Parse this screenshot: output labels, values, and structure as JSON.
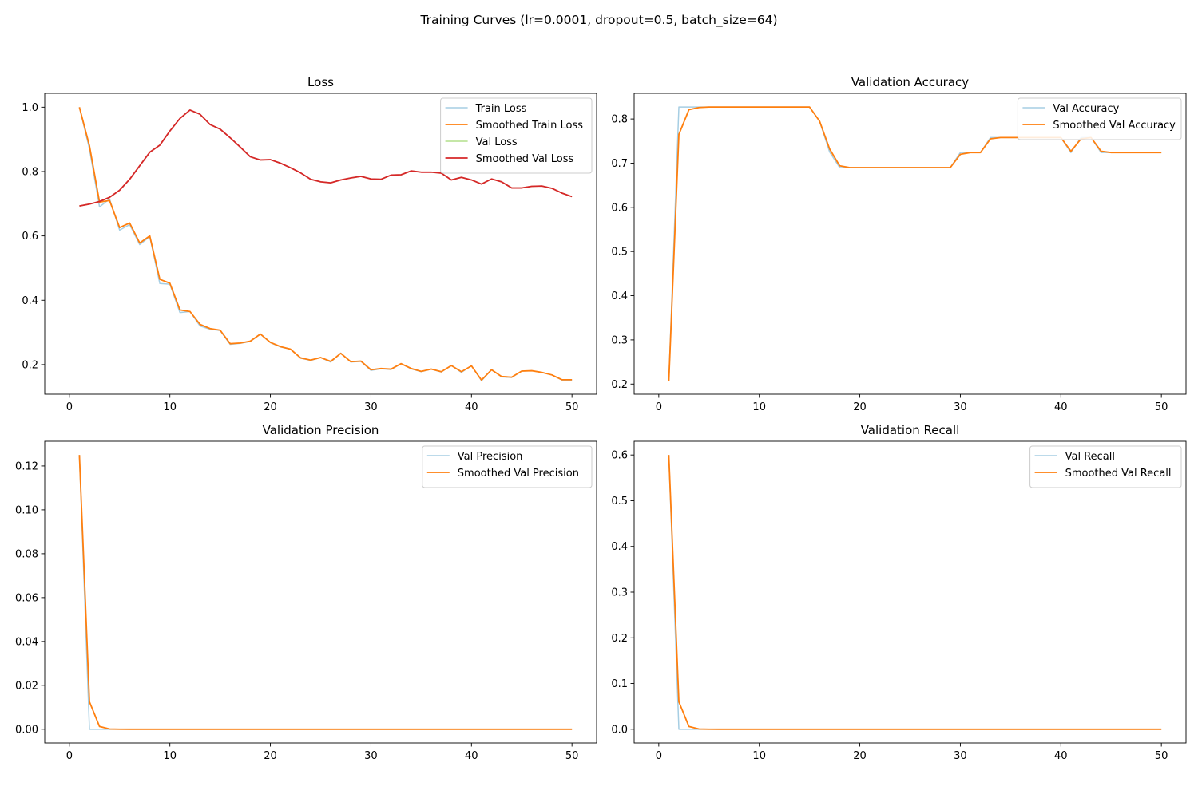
{
  "figure": {
    "title": "Training Curves (lr=0.0001, dropout=0.5, batch_size=64)"
  },
  "chart_data": [
    {
      "type": "line",
      "title": "Loss",
      "xlabel": "",
      "ylabel": "",
      "xlim": [
        -2.45,
        52.45
      ],
      "ylim": [
        0.108,
        1.043
      ],
      "xticks": [
        0,
        10,
        20,
        30,
        40,
        50
      ],
      "yticks": [
        0.2,
        0.4,
        0.6,
        0.8,
        1.0
      ],
      "ytick_labels": [
        "0.2",
        "0.4",
        "0.6",
        "0.8",
        "1.0"
      ],
      "legend": "top-right",
      "grid": false,
      "x": [
        1,
        2,
        3,
        4,
        5,
        6,
        7,
        8,
        9,
        10,
        11,
        12,
        13,
        14,
        15,
        16,
        17,
        18,
        19,
        20,
        21,
        22,
        23,
        24,
        25,
        26,
        27,
        28,
        29,
        30,
        31,
        32,
        33,
        34,
        35,
        36,
        37,
        38,
        39,
        40,
        41,
        42,
        43,
        44,
        45,
        46,
        47,
        48,
        49,
        50
      ],
      "series": [
        {
          "name": "Train Loss",
          "color": "#a6cee3",
          "width": 1.5,
          "values": [
            1.0,
            0.87,
            0.69,
            0.715,
            0.618,
            0.635,
            0.573,
            0.598,
            0.452,
            0.45,
            0.362,
            0.365,
            0.32,
            0.31,
            0.306,
            0.263,
            0.266,
            0.272,
            0.295,
            0.268,
            0.255,
            0.248,
            0.22,
            0.213,
            0.222,
            0.208,
            0.236,
            0.208,
            0.21,
            0.182,
            0.187,
            0.185,
            0.203,
            0.187,
            0.178,
            0.186,
            0.177,
            0.198,
            0.176,
            0.197,
            0.15,
            0.185,
            0.162,
            0.16,
            0.18,
            0.181,
            0.176,
            0.168,
            0.152,
            0.152
          ]
        },
        {
          "name": "Smoothed Train Loss",
          "color": "#ff7f0e",
          "width": 1.8,
          "values": [
            1.0,
            0.88,
            0.705,
            0.71,
            0.626,
            0.64,
            0.578,
            0.6,
            0.465,
            0.453,
            0.37,
            0.365,
            0.325,
            0.312,
            0.307,
            0.265,
            0.267,
            0.273,
            0.295,
            0.269,
            0.256,
            0.248,
            0.221,
            0.214,
            0.222,
            0.21,
            0.235,
            0.209,
            0.211,
            0.184,
            0.188,
            0.186,
            0.203,
            0.188,
            0.179,
            0.186,
            0.178,
            0.197,
            0.178,
            0.196,
            0.152,
            0.184,
            0.163,
            0.161,
            0.18,
            0.181,
            0.176,
            0.168,
            0.153,
            0.153
          ]
        },
        {
          "name": "Val Loss",
          "color": "#b2df8a",
          "width": 1.5,
          "values": [
            0.693,
            0.699,
            0.707,
            0.72,
            0.742,
            0.776,
            0.818,
            0.86,
            0.882,
            0.926,
            0.965,
            0.991,
            0.978,
            0.946,
            0.932,
            0.905,
            0.876,
            0.846,
            0.836,
            0.837,
            0.826,
            0.812,
            0.796,
            0.776,
            0.768,
            0.765,
            0.774,
            0.78,
            0.785,
            0.777,
            0.776,
            0.789,
            0.79,
            0.802,
            0.798,
            0.798,
            0.795,
            0.774,
            0.782,
            0.774,
            0.761,
            0.777,
            0.768,
            0.749,
            0.749,
            0.754,
            0.755,
            0.748,
            0.733,
            0.722
          ]
        },
        {
          "name": "Smoothed Val Loss",
          "color": "#d62728",
          "width": 1.8,
          "values": [
            0.693,
            0.699,
            0.707,
            0.72,
            0.742,
            0.776,
            0.818,
            0.86,
            0.882,
            0.926,
            0.965,
            0.991,
            0.978,
            0.946,
            0.932,
            0.905,
            0.876,
            0.846,
            0.836,
            0.837,
            0.826,
            0.812,
            0.796,
            0.776,
            0.768,
            0.765,
            0.774,
            0.78,
            0.785,
            0.777,
            0.776,
            0.789,
            0.79,
            0.802,
            0.798,
            0.798,
            0.795,
            0.774,
            0.782,
            0.774,
            0.761,
            0.777,
            0.768,
            0.749,
            0.749,
            0.754,
            0.755,
            0.748,
            0.733,
            0.722
          ]
        }
      ]
    },
    {
      "type": "line",
      "title": "Validation Accuracy",
      "xlabel": "",
      "ylabel": "",
      "xlim": [
        -2.45,
        52.45
      ],
      "ylim": [
        0.177,
        0.858
      ],
      "xticks": [
        0,
        10,
        20,
        30,
        40,
        50
      ],
      "yticks": [
        0.2,
        0.3,
        0.4,
        0.5,
        0.6,
        0.7,
        0.8
      ],
      "ytick_labels": [
        "0.2",
        "0.3",
        "0.4",
        "0.5",
        "0.6",
        "0.7",
        "0.8"
      ],
      "legend": "top-right",
      "grid": false,
      "x": [
        1,
        2,
        3,
        4,
        5,
        6,
        7,
        8,
        9,
        10,
        11,
        12,
        13,
        14,
        15,
        16,
        17,
        18,
        19,
        20,
        21,
        22,
        23,
        24,
        25,
        26,
        27,
        28,
        29,
        30,
        31,
        32,
        33,
        34,
        35,
        36,
        37,
        38,
        39,
        40,
        41,
        42,
        43,
        44,
        45,
        46,
        47,
        48,
        49,
        50
      ],
      "series": [
        {
          "name": "Val Accuracy",
          "color": "#a6cee3",
          "width": 1.5,
          "values": [
            0.206,
            0.827,
            0.827,
            0.827,
            0.827,
            0.827,
            0.827,
            0.827,
            0.827,
            0.827,
            0.827,
            0.827,
            0.827,
            0.827,
            0.827,
            0.795,
            0.725,
            0.69,
            0.69,
            0.69,
            0.69,
            0.69,
            0.69,
            0.69,
            0.69,
            0.69,
            0.69,
            0.69,
            0.69,
            0.724,
            0.724,
            0.724,
            0.758,
            0.758,
            0.758,
            0.758,
            0.758,
            0.758,
            0.758,
            0.758,
            0.724,
            0.758,
            0.758,
            0.724,
            0.724,
            0.724,
            0.724,
            0.724,
            0.724,
            0.724
          ]
        },
        {
          "name": "Smoothed Val Accuracy",
          "color": "#ff7f0e",
          "width": 1.8,
          "values": [
            0.206,
            0.765,
            0.821,
            0.826,
            0.827,
            0.827,
            0.827,
            0.827,
            0.827,
            0.827,
            0.827,
            0.827,
            0.827,
            0.827,
            0.827,
            0.795,
            0.732,
            0.694,
            0.69,
            0.69,
            0.69,
            0.69,
            0.69,
            0.69,
            0.69,
            0.69,
            0.69,
            0.69,
            0.69,
            0.72,
            0.724,
            0.724,
            0.755,
            0.758,
            0.758,
            0.758,
            0.758,
            0.758,
            0.758,
            0.758,
            0.727,
            0.755,
            0.758,
            0.727,
            0.724,
            0.724,
            0.724,
            0.724,
            0.724,
            0.724
          ]
        }
      ]
    },
    {
      "type": "line",
      "title": "Validation Precision",
      "xlabel": "",
      "ylabel": "",
      "xlim": [
        -2.45,
        52.45
      ],
      "ylim": [
        -0.00625,
        0.13125
      ],
      "xticks": [
        0,
        10,
        20,
        30,
        40,
        50
      ],
      "yticks": [
        0.0,
        0.02,
        0.04,
        0.06,
        0.08,
        0.1,
        0.12
      ],
      "ytick_labels": [
        "0.00",
        "0.02",
        "0.04",
        "0.06",
        "0.08",
        "0.10",
        "0.12"
      ],
      "legend": "top-right",
      "grid": false,
      "x": [
        1,
        2,
        3,
        4,
        5,
        6,
        7,
        8,
        9,
        10,
        11,
        12,
        13,
        14,
        15,
        16,
        17,
        18,
        19,
        20,
        21,
        22,
        23,
        24,
        25,
        26,
        27,
        28,
        29,
        30,
        31,
        32,
        33,
        34,
        35,
        36,
        37,
        38,
        39,
        40,
        41,
        42,
        43,
        44,
        45,
        46,
        47,
        48,
        49,
        50
      ],
      "series": [
        {
          "name": "Val Precision",
          "color": "#a6cee3",
          "width": 1.5,
          "values": [
            0.125,
            0,
            0,
            0,
            0,
            0,
            0,
            0,
            0,
            0,
            0,
            0,
            0,
            0,
            0,
            0,
            0,
            0,
            0,
            0,
            0,
            0,
            0,
            0,
            0,
            0,
            0,
            0,
            0,
            0,
            0,
            0,
            0,
            0,
            0,
            0,
            0,
            0,
            0,
            0,
            0,
            0,
            0,
            0,
            0,
            0,
            0,
            0,
            0,
            0
          ]
        },
        {
          "name": "Smoothed Val Precision",
          "color": "#ff7f0e",
          "width": 1.8,
          "values": [
            0.125,
            0.0125,
            0.00125,
            0.000125,
            1.25e-05,
            0,
            0,
            0,
            0,
            0,
            0,
            0,
            0,
            0,
            0,
            0,
            0,
            0,
            0,
            0,
            0,
            0,
            0,
            0,
            0,
            0,
            0,
            0,
            0,
            0,
            0,
            0,
            0,
            0,
            0,
            0,
            0,
            0,
            0,
            0,
            0,
            0,
            0,
            0,
            0,
            0,
            0,
            0,
            0,
            0
          ]
        }
      ]
    },
    {
      "type": "line",
      "title": "Validation Recall",
      "xlabel": "",
      "ylabel": "",
      "xlim": [
        -2.45,
        52.45
      ],
      "ylim": [
        -0.03,
        0.63
      ],
      "xticks": [
        0,
        10,
        20,
        30,
        40,
        50
      ],
      "yticks": [
        0.0,
        0.1,
        0.2,
        0.3,
        0.4,
        0.5,
        0.6
      ],
      "ytick_labels": [
        "0.0",
        "0.1",
        "0.2",
        "0.3",
        "0.4",
        "0.5",
        "0.6"
      ],
      "legend": "top-right",
      "grid": false,
      "x": [
        1,
        2,
        3,
        4,
        5,
        6,
        7,
        8,
        9,
        10,
        11,
        12,
        13,
        14,
        15,
        16,
        17,
        18,
        19,
        20,
        21,
        22,
        23,
        24,
        25,
        26,
        27,
        28,
        29,
        30,
        31,
        32,
        33,
        34,
        35,
        36,
        37,
        38,
        39,
        40,
        41,
        42,
        43,
        44,
        45,
        46,
        47,
        48,
        49,
        50
      ],
      "series": [
        {
          "name": "Val Recall",
          "color": "#a6cee3",
          "width": 1.5,
          "values": [
            0.6,
            0,
            0,
            0,
            0,
            0,
            0,
            0,
            0,
            0,
            0,
            0,
            0,
            0,
            0,
            0,
            0,
            0,
            0,
            0,
            0,
            0,
            0,
            0,
            0,
            0,
            0,
            0,
            0,
            0,
            0,
            0,
            0,
            0,
            0,
            0,
            0,
            0,
            0,
            0,
            0,
            0,
            0,
            0,
            0,
            0,
            0,
            0,
            0,
            0
          ]
        },
        {
          "name": "Smoothed Val Recall",
          "color": "#ff7f0e",
          "width": 1.8,
          "values": [
            0.6,
            0.06,
            0.006,
            0.0006,
            6e-05,
            0,
            0,
            0,
            0,
            0,
            0,
            0,
            0,
            0,
            0,
            0,
            0,
            0,
            0,
            0,
            0,
            0,
            0,
            0,
            0,
            0,
            0,
            0,
            0,
            0,
            0,
            0,
            0,
            0,
            0,
            0,
            0,
            0,
            0,
            0,
            0,
            0,
            0,
            0,
            0,
            0,
            0,
            0,
            0,
            0
          ]
        }
      ]
    }
  ]
}
